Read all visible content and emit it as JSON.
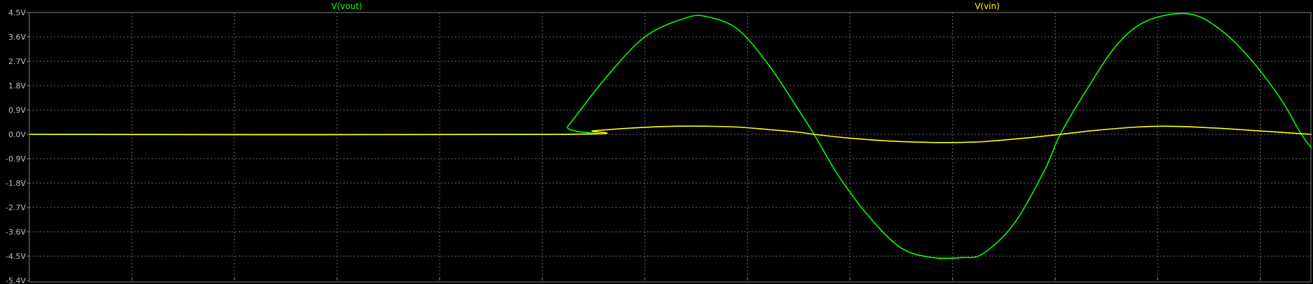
{
  "colors": {
    "background": "#000000",
    "frame": "#808080",
    "grid": "#6e6e6e",
    "tick_text": "#c0c0c0"
  },
  "chart_data": {
    "type": "line",
    "title": "",
    "xlabel": "",
    "ylabel": "",
    "ylim": [
      -5.4,
      4.5
    ],
    "xlim": [
      0,
      12.5
    ],
    "grid": true,
    "x_grid_lines": 12,
    "y_ticks": [
      "4.5V",
      "3.6V",
      "2.7V",
      "1.8V",
      "0.9V",
      "0.0V",
      "-0.9V",
      "-1.8V",
      "-2.7V",
      "-3.6V",
      "-4.5V",
      "-5.4V"
    ],
    "y_tick_values": [
      4.5,
      3.6,
      2.7,
      1.8,
      0.9,
      0.0,
      -0.9,
      -1.8,
      -2.7,
      -3.6,
      -4.5,
      -5.4
    ],
    "legend_placement": "top",
    "series": [
      {
        "name": "V(vout)",
        "color": "#00ff00",
        "x": [
          0,
          5.15,
          5.25,
          5.6,
          6.0,
          6.4,
          6.6,
          6.9,
          7.2,
          7.5,
          7.65,
          7.9,
          8.2,
          8.5,
          8.8,
          9.1,
          9.3,
          9.6,
          9.9,
          10.05,
          10.3,
          10.6,
          10.9,
          11.3,
          11.6,
          11.9,
          12.2,
          12.4,
          12.5
        ],
        "y": [
          0.0,
          0.0,
          0.3,
          2.0,
          3.6,
          4.3,
          4.35,
          3.9,
          2.6,
          0.9,
          0.0,
          -1.6,
          -3.1,
          -4.2,
          -4.55,
          -4.55,
          -4.4,
          -3.3,
          -1.3,
          0.0,
          1.6,
          3.3,
          4.2,
          4.45,
          3.9,
          2.8,
          1.3,
          0.0,
          -0.5
        ]
      },
      {
        "name": "V(vin)",
        "color": "#ffff00",
        "x": [
          0,
          5.15,
          5.5,
          5.9,
          6.3,
          6.6,
          6.9,
          7.2,
          7.5,
          7.65,
          8.0,
          8.4,
          8.8,
          9.05,
          9.3,
          9.7,
          10.05,
          10.4,
          10.8,
          11.05,
          11.3,
          11.7,
          12.1,
          12.5
        ],
        "y": [
          0.0,
          0.0,
          0.13,
          0.24,
          0.3,
          0.3,
          0.27,
          0.18,
          0.08,
          0.0,
          -0.14,
          -0.25,
          -0.3,
          -0.3,
          -0.27,
          -0.14,
          0.0,
          0.15,
          0.27,
          0.3,
          0.28,
          0.2,
          0.1,
          0.0
        ]
      }
    ]
  }
}
